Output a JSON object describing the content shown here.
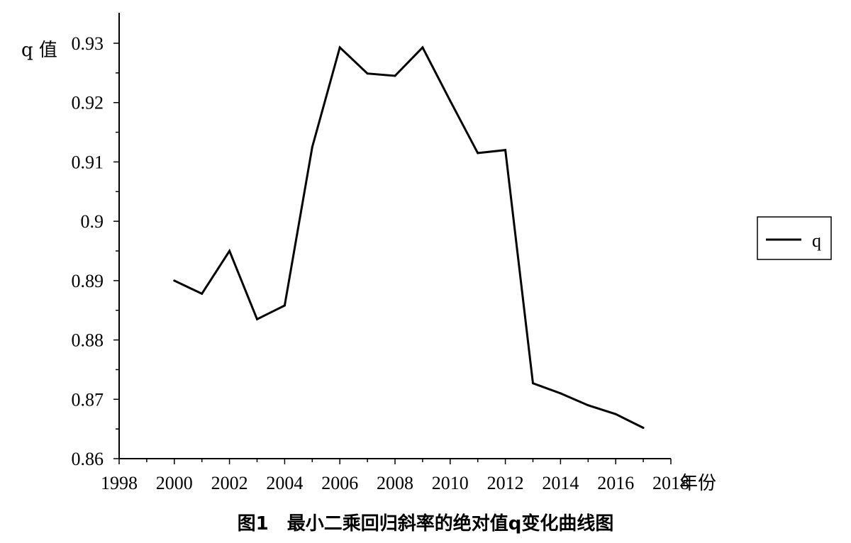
{
  "chart_data": {
    "type": "line",
    "ylabel": "q 值",
    "xlabel": "年份",
    "xlim": [
      1998,
      2018
    ],
    "ylim": [
      0.86,
      0.93
    ],
    "x_ticks": [
      1998,
      2000,
      2002,
      2004,
      2006,
      2008,
      2010,
      2012,
      2014,
      2016,
      2018
    ],
    "y_ticks": [
      0.86,
      0.87,
      0.88,
      0.89,
      0.9,
      0.91,
      0.92,
      0.93
    ],
    "x_tick_labels": [
      "1998",
      "2000",
      "2002",
      "2004",
      "2006",
      "2008",
      "2010",
      "2012",
      "2014",
      "2016",
      "2018"
    ],
    "y_tick_labels": [
      "0.86",
      "0.87",
      "0.88",
      "0.89",
      "0.9",
      "0.91",
      "0.92",
      "0.93"
    ],
    "x_minor_step": 1,
    "y_minor_step": 0.005,
    "legend_position": "right",
    "grid": false,
    "line_color": "#000000",
    "series": [
      {
        "name": "q",
        "x": [
          2000,
          2001,
          2002,
          2003,
          2004,
          2005,
          2006,
          2007,
          2008,
          2009,
          2010,
          2011,
          2012,
          2013,
          2014,
          2015,
          2016,
          2017
        ],
        "y": [
          0.89,
          0.8878,
          0.895,
          0.8835,
          0.8858,
          0.9125,
          0.9293,
          0.9249,
          0.9245,
          0.9293,
          0.9203,
          0.9115,
          0.912,
          0.8727,
          0.871,
          0.869,
          0.8675,
          0.8652
        ]
      }
    ]
  },
  "caption": "图1　最小二乘回归斜率的绝对值q变化曲线图"
}
